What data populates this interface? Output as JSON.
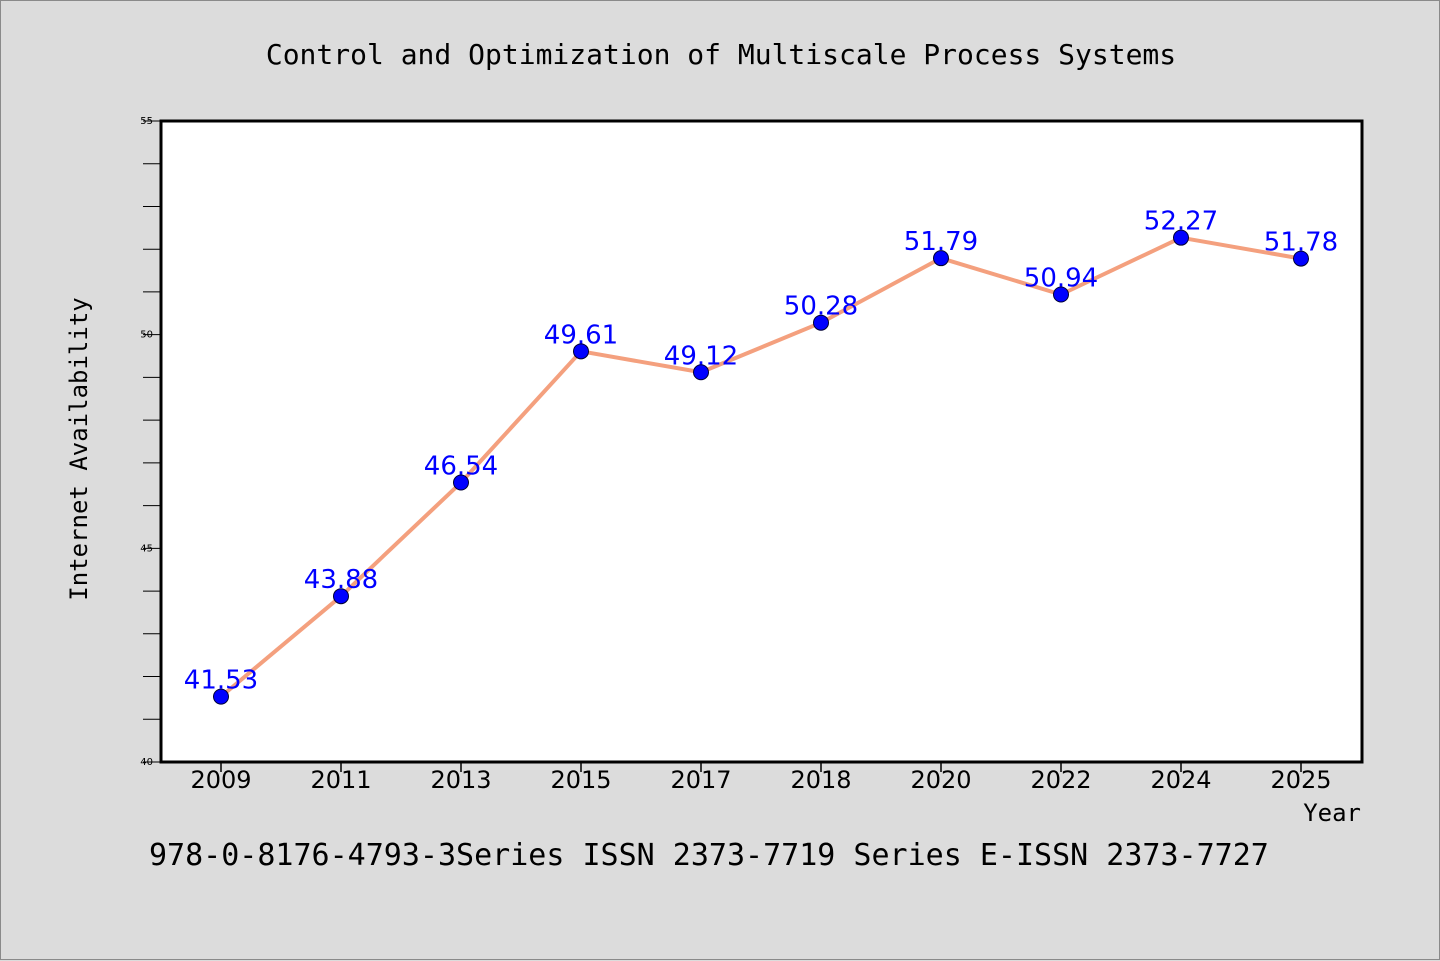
{
  "chart_data": {
    "type": "line",
    "title": "Control and Optimization of Multiscale Process Systems",
    "xlabel": "Year",
    "ylabel": "Internet Availability",
    "categories": [
      "2009",
      "2011",
      "2013",
      "2015",
      "2017",
      "2018",
      "2020",
      "2022",
      "2024",
      "2025"
    ],
    "series": [
      {
        "values": [
          41.53,
          43.88,
          46.54,
          49.61,
          49.12,
          50.28,
          51.79,
          50.94,
          52.27,
          51.78
        ]
      }
    ],
    "data_labels": [
      "41.53",
      "43.88",
      "46.54",
      "49.61",
      "49.12",
      "50.28",
      "51.79",
      "50.94",
      "52.27",
      "51.78"
    ],
    "ylim": [
      40,
      55
    ],
    "yticks": [
      "40",
      "45",
      "50",
      "55"
    ],
    "grid": false,
    "footer": "978-0-8176-4793-3Series ISSN 2373-7719 Series E-ISSN 2373-7727",
    "colors": {
      "line": "#f4a07e",
      "marker": "#0000ff",
      "label": "#0000ff",
      "background": "#dcdcdc",
      "plot_bg": "#ffffff"
    }
  }
}
